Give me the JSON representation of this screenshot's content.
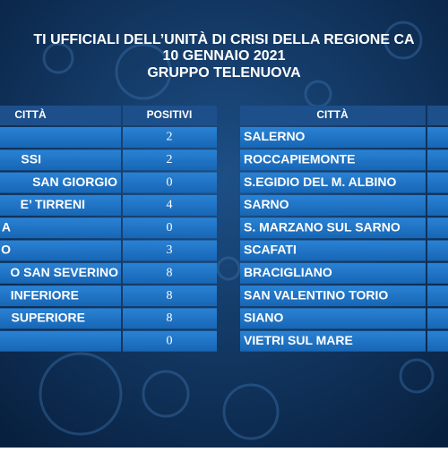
{
  "header": {
    "lines": [
      "TI UFFICIALI DELL’UNITÀ DI CRISI DELLA REGIONE CA",
      "10 GENNAIO 2021",
      "GRUPPO TELENUOVA"
    ]
  },
  "left_table": {
    "columns": [
      "CITTÀ",
      "POSITIVI"
    ],
    "rows": [
      [
        null,
        "2"
      ],
      [
        "SSI",
        "2"
      ],
      [
        "SAN GIORGIO",
        "0"
      ],
      [
        "E’ TIRRENI",
        "4"
      ],
      [
        "A",
        "0"
      ],
      [
        "O",
        "3"
      ],
      [
        "O SAN SEVERINO",
        "8"
      ],
      [
        "INFERIORE",
        "8"
      ],
      [
        "SUPERIORE",
        "8"
      ],
      [
        null,
        "0"
      ]
    ]
  },
  "right_table": {
    "columns": [
      "CITTÀ"
    ],
    "rows": [
      "SALERNO",
      "ROCCAPIEMONTE",
      "S.EGIDIO DEL M. ALBINO",
      "SARNO",
      "S. MARZANO SUL SARNO",
      "SCAFATI",
      "BRACIGLIANO",
      "SAN VALENTINO TORIO",
      "SIANO",
      "VIETRI SUL MARE"
    ]
  }
}
